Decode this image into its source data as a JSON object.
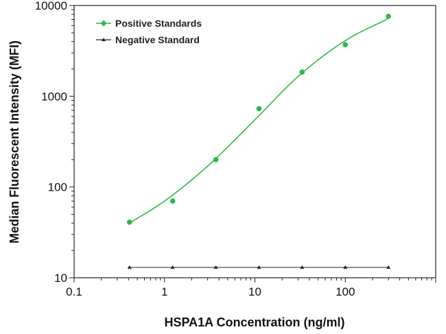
{
  "chart_data": {
    "type": "scatter",
    "title": "",
    "xlabel": "HSPA1A Concentration (ng/ml)",
    "ylabel": "Median  Fluorescent Intensity  (MFI)",
    "xscale": "log",
    "yscale": "log",
    "xlim": [
      0.1,
      1000
    ],
    "ylim": [
      10,
      10000
    ],
    "x_ticks": [
      0.1,
      1,
      10,
      100
    ],
    "x_tick_labels": [
      "0.1",
      "1",
      "10",
      "100"
    ],
    "y_ticks": [
      10,
      100,
      1000,
      10000
    ],
    "y_tick_labels": [
      "10",
      "100",
      "1000",
      "10000"
    ],
    "grid": false,
    "legend_position": "top-left",
    "series": [
      {
        "name": "Positive Standards",
        "color": "#2db84a",
        "marker": "circle",
        "fit_curve": true,
        "x": [
          0.41,
          1.23,
          3.7,
          11.1,
          33.3,
          100,
          300
        ],
        "y": [
          41,
          70,
          200,
          730,
          1850,
          3700,
          7600
        ],
        "fit_x": [
          0.41,
          1,
          3,
          10,
          30,
          100,
          300
        ],
        "fit_y": [
          40,
          70,
          170,
          550,
          1650,
          4100,
          7200
        ]
      },
      {
        "name": "Negative Standard",
        "color": "#222222",
        "marker": "triangle",
        "fit_curve": false,
        "x": [
          0.41,
          1.23,
          3.7,
          11.1,
          33.3,
          100,
          300
        ],
        "y": [
          13,
          13,
          13,
          13,
          13,
          13,
          13
        ]
      }
    ]
  }
}
